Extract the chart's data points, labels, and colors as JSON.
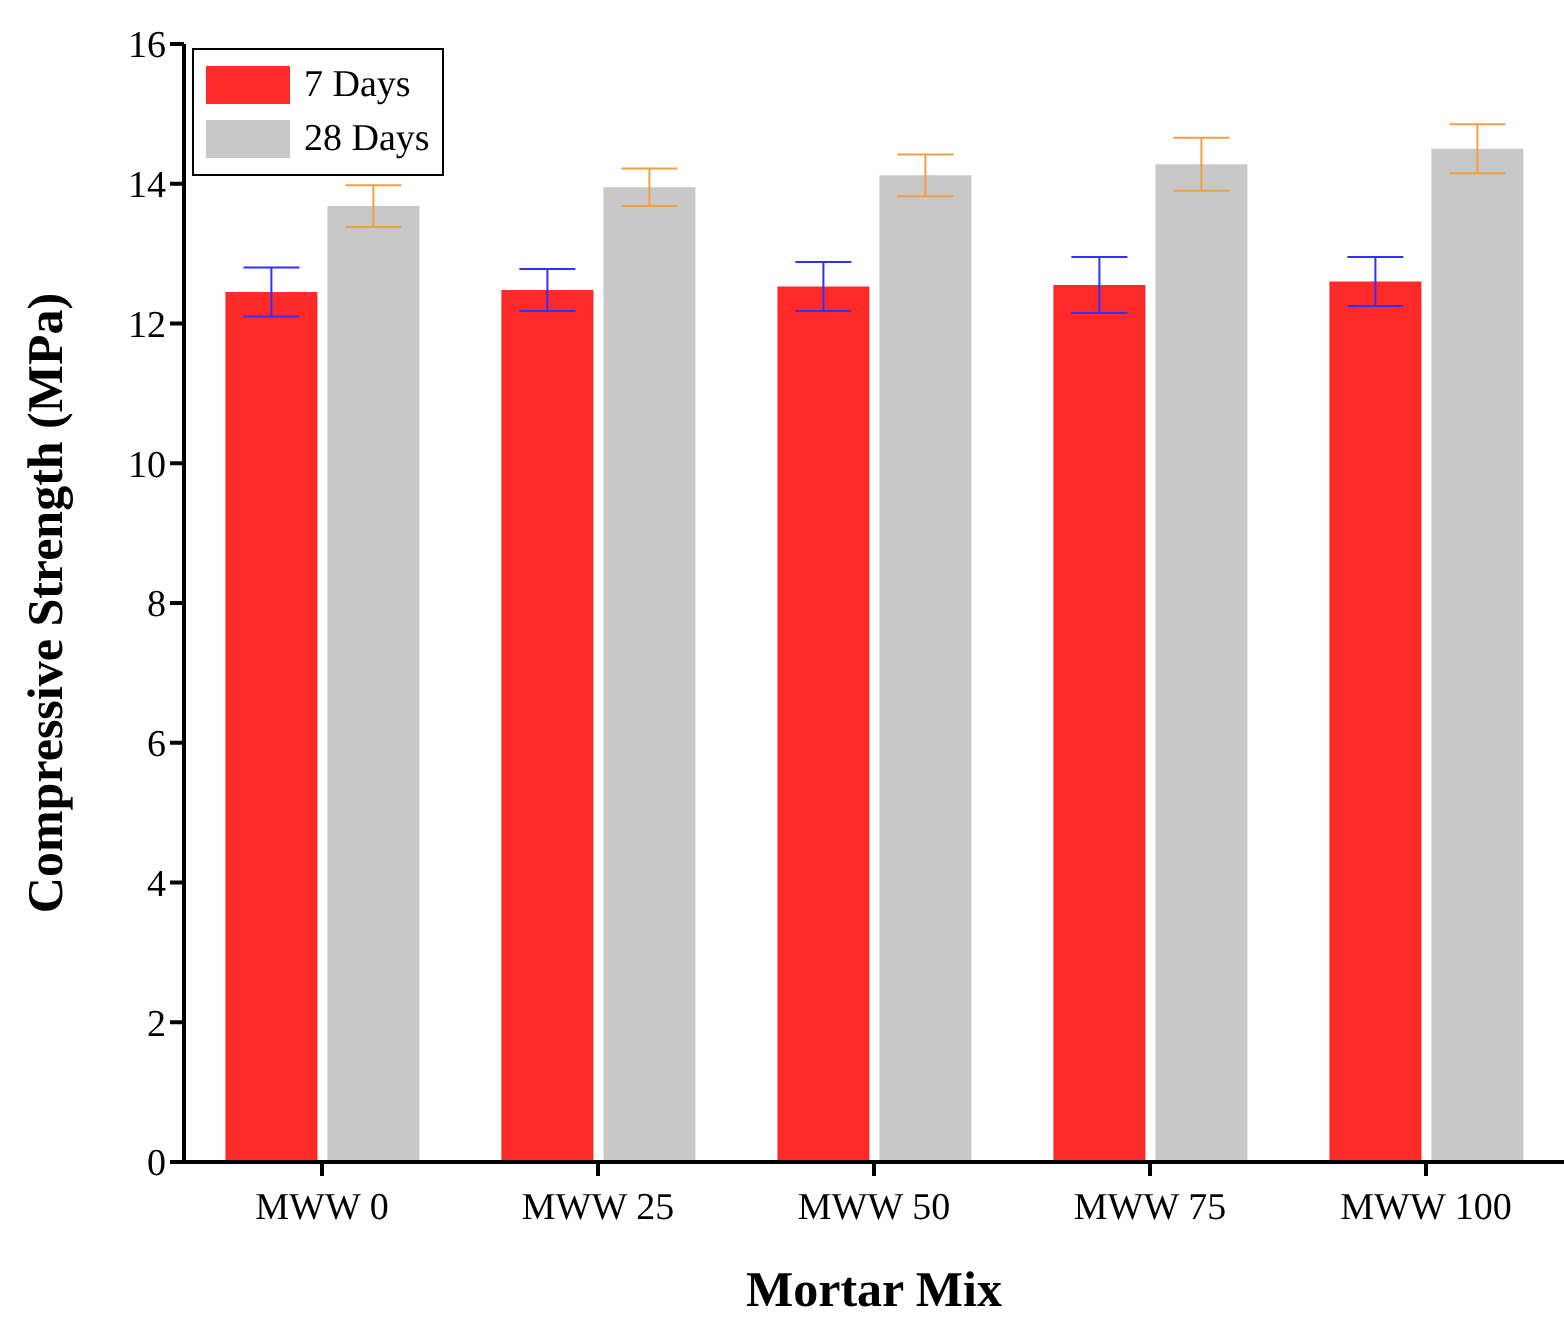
{
  "chart_data": {
    "type": "bar",
    "xlabel": "Mortar Mix",
    "ylabel": "Compressive Strength (MPa)",
    "categories": [
      "MWW 0",
      "MWW 25",
      "MWW 50",
      "MWW 75",
      "MWW 100"
    ],
    "series": [
      {
        "name": "7 Days",
        "color": "#fe2a2a",
        "values": [
          12.45,
          12.48,
          12.53,
          12.55,
          12.6
        ],
        "errors": [
          0.35,
          0.3,
          0.35,
          0.4,
          0.35
        ]
      },
      {
        "name": "28 Days",
        "color": "#c8c8c8",
        "values": [
          13.68,
          13.95,
          14.12,
          14.28,
          14.5
        ],
        "errors": [
          0.3,
          0.27,
          0.3,
          0.38,
          0.35
        ]
      }
    ],
    "ylim": [
      0,
      16
    ],
    "yticks": [
      0,
      2,
      4,
      6,
      8,
      10,
      12,
      14,
      16
    ],
    "legend": "top left"
  }
}
